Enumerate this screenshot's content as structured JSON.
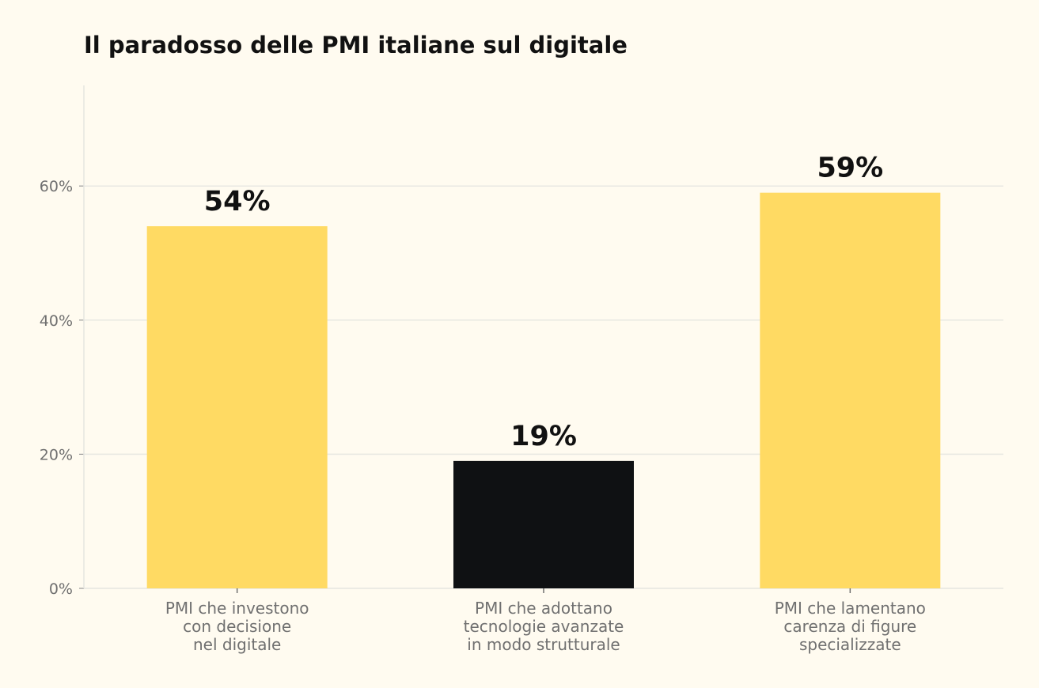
{
  "chart_data": {
    "type": "bar",
    "title": "Il paradosso delle PMI italiane sul digitale",
    "categories": [
      [
        "PMI che investono",
        "con decisione",
        "nel digitale"
      ],
      [
        "PMI che adottano",
        "tecnologie avanzate",
        "in modo strutturale"
      ],
      [
        "PMI che lamentano",
        "carenza di figure",
        "specializzate"
      ]
    ],
    "values": [
      54,
      19,
      59
    ],
    "value_labels": [
      "54%",
      "19%",
      "59%"
    ],
    "bar_colors": [
      "#FFDA63",
      "#0F1113",
      "#FFDA63"
    ],
    "ylim": [
      0,
      75
    ],
    "yticks": [
      0,
      20,
      40,
      60
    ],
    "ytick_labels": [
      "0%",
      "20%",
      "40%",
      "60%"
    ],
    "grid": true,
    "xlabel": "",
    "ylabel": ""
  }
}
